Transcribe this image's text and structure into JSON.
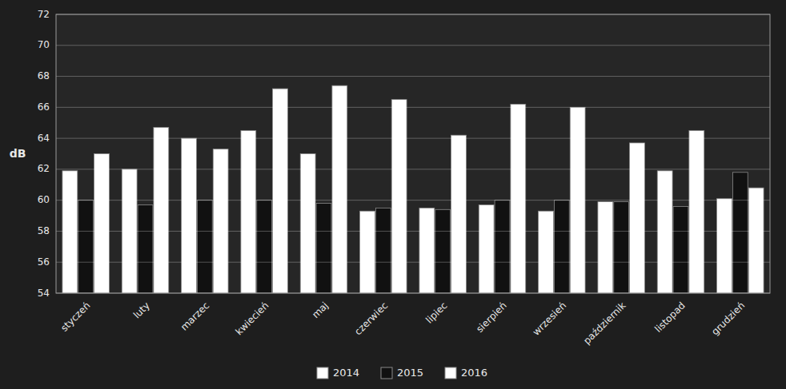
{
  "chart_data": {
    "type": "bar",
    "y_label": "dB",
    "categories": [
      "styczeń",
      "luty",
      "marzec",
      "kwiecień",
      "maj",
      "czerwiec",
      "lipiec",
      "sierpień",
      "wrzesień",
      "październik",
      "listopad",
      "grudzień"
    ],
    "series": [
      {
        "name": "2014",
        "color": "#ffffff",
        "values": [
          61.9,
          62.0,
          64.0,
          64.5,
          63.0,
          59.3,
          59.5,
          59.7,
          59.3,
          59.9,
          61.9,
          60.1
        ]
      },
      {
        "name": "2015",
        "color": "#111111",
        "values": [
          60.0,
          59.7,
          60.0,
          60.0,
          59.8,
          59.5,
          59.4,
          60.0,
          60.0,
          59.9,
          59.6,
          61.8
        ]
      },
      {
        "name": "2016",
        "color": "#ffffff",
        "values": [
          63.0,
          64.7,
          63.3,
          67.2,
          67.4,
          66.5,
          64.2,
          66.2,
          66.0,
          63.7,
          64.5,
          60.8
        ]
      }
    ],
    "ylim": [
      54,
      72
    ],
    "yticks": [
      54,
      56,
      58,
      60,
      62,
      64,
      66,
      68,
      70,
      72
    ],
    "grid": true,
    "legend": "bottom"
  }
}
